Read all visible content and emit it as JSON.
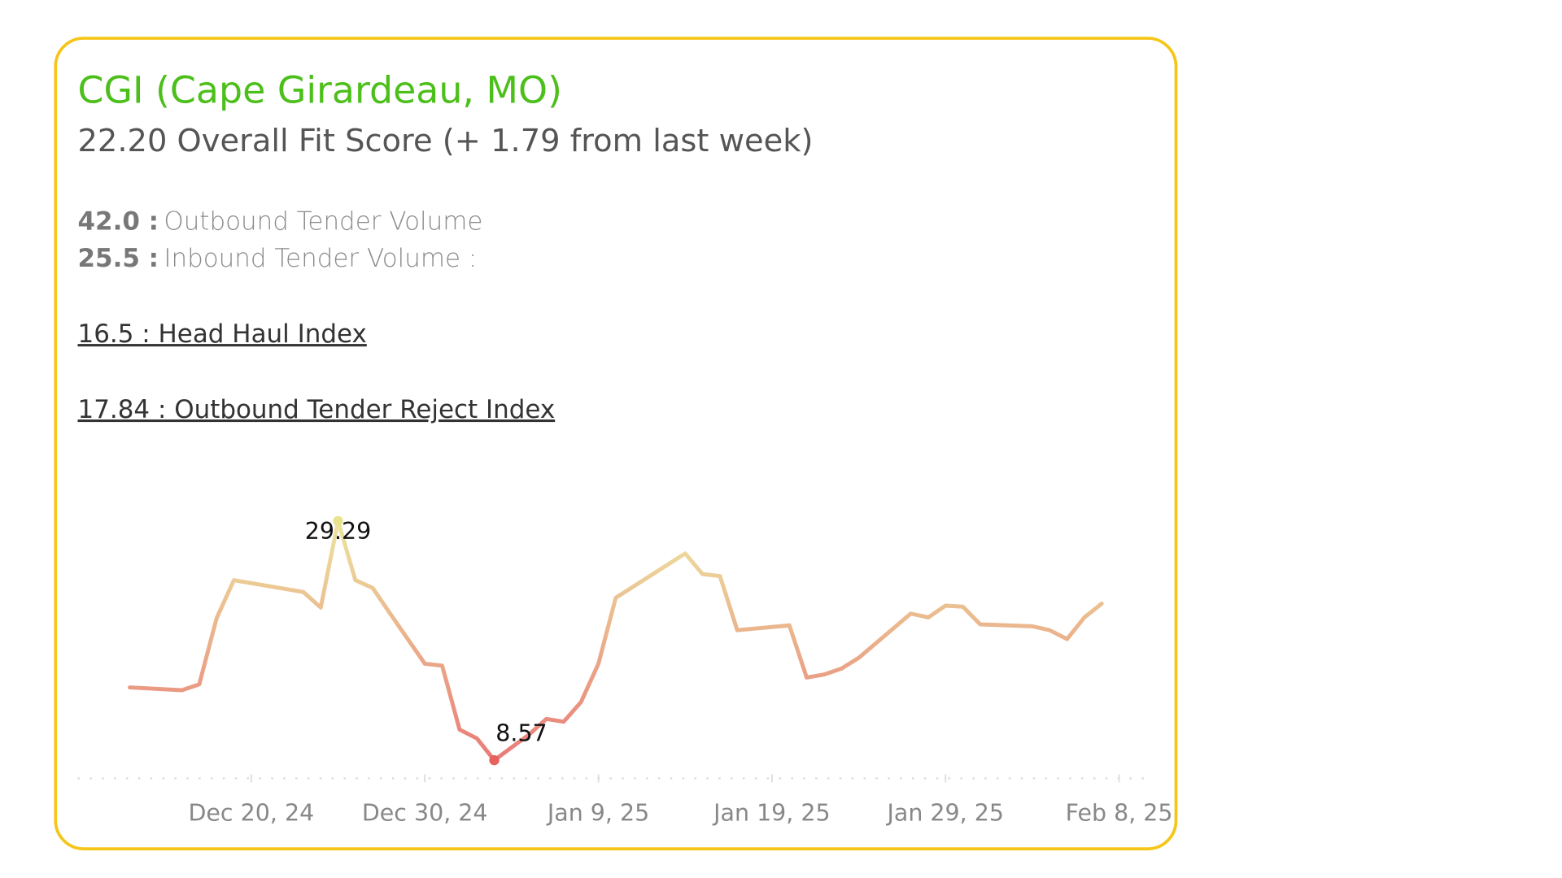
{
  "card": {
    "title": "CGI (Cape Girardeau, MO)",
    "subtitle": "22.20 Overall Fit Score (+ 1.79 from last week)",
    "metrics": [
      {
        "value": "42.0 :",
        "label": "Outbound Tender Volume"
      },
      {
        "value": "25.5 :",
        "label": "Inbound Tender Volume :"
      }
    ],
    "links": [
      "16.5 : Head Haul Index",
      "17.84 : Outbound Tender Reject Index"
    ]
  },
  "chart_data": {
    "type": "line",
    "x": [
      "2024-12-13",
      "2024-12-16",
      "2024-12-17",
      "2024-12-18",
      "2024-12-19",
      "2024-12-23",
      "2024-12-24",
      "2024-12-25",
      "2024-12-26",
      "2024-12-27",
      "2024-12-28",
      "2024-12-30",
      "2024-12-31",
      "2025-01-01",
      "2025-01-02",
      "2025-01-03",
      "2025-01-04",
      "2025-01-05",
      "2025-01-06",
      "2025-01-07",
      "2025-01-08",
      "2025-01-09",
      "2025-01-10",
      "2025-01-14",
      "2025-01-15",
      "2025-01-16",
      "2025-01-17",
      "2025-01-20",
      "2025-01-21",
      "2025-01-22",
      "2025-01-23",
      "2025-01-24",
      "2025-01-27",
      "2025-01-28",
      "2025-01-29",
      "2025-01-30",
      "2025-01-31",
      "2025-02-03",
      "2025-02-04",
      "2025-02-05",
      "2025-02-06",
      "2025-02-07"
    ],
    "series": [
      {
        "name": "Outbound Tender Reject Index",
        "color_low": "#e5625f",
        "color_high": "#e9e28f",
        "values": [
          14.88,
          14.63,
          15.14,
          20.85,
          24.17,
          23.15,
          21.79,
          29.29,
          24.17,
          23.49,
          21.27,
          16.93,
          16.76,
          11.22,
          10.45,
          8.57,
          9.68,
          10.79,
          12.15,
          11.9,
          13.6,
          16.93,
          22.64,
          26.48,
          24.69,
          24.52,
          19.83,
          20.25,
          15.73,
          15.99,
          16.5,
          17.44,
          21.27,
          20.94,
          21.96,
          21.87,
          20.34,
          20.17,
          19.83,
          19.06,
          20.94,
          22.13
        ]
      }
    ],
    "xlim": [
      "2024-12-10",
      "2025-02-10"
    ],
    "xticks": [
      {
        "value": "2024-12-20",
        "label": "Dec 20, 24"
      },
      {
        "value": "2024-12-30",
        "label": "Dec 30, 24"
      },
      {
        "value": "2025-01-09",
        "label": "Jan 9, 25"
      },
      {
        "value": "2025-01-19",
        "label": "Jan 19, 25"
      },
      {
        "value": "2025-01-29",
        "label": "Jan 29, 25"
      },
      {
        "value": "2025-02-08",
        "label": "Feb 8, 25"
      }
    ],
    "ylim": [
      7,
      35
    ]
  }
}
